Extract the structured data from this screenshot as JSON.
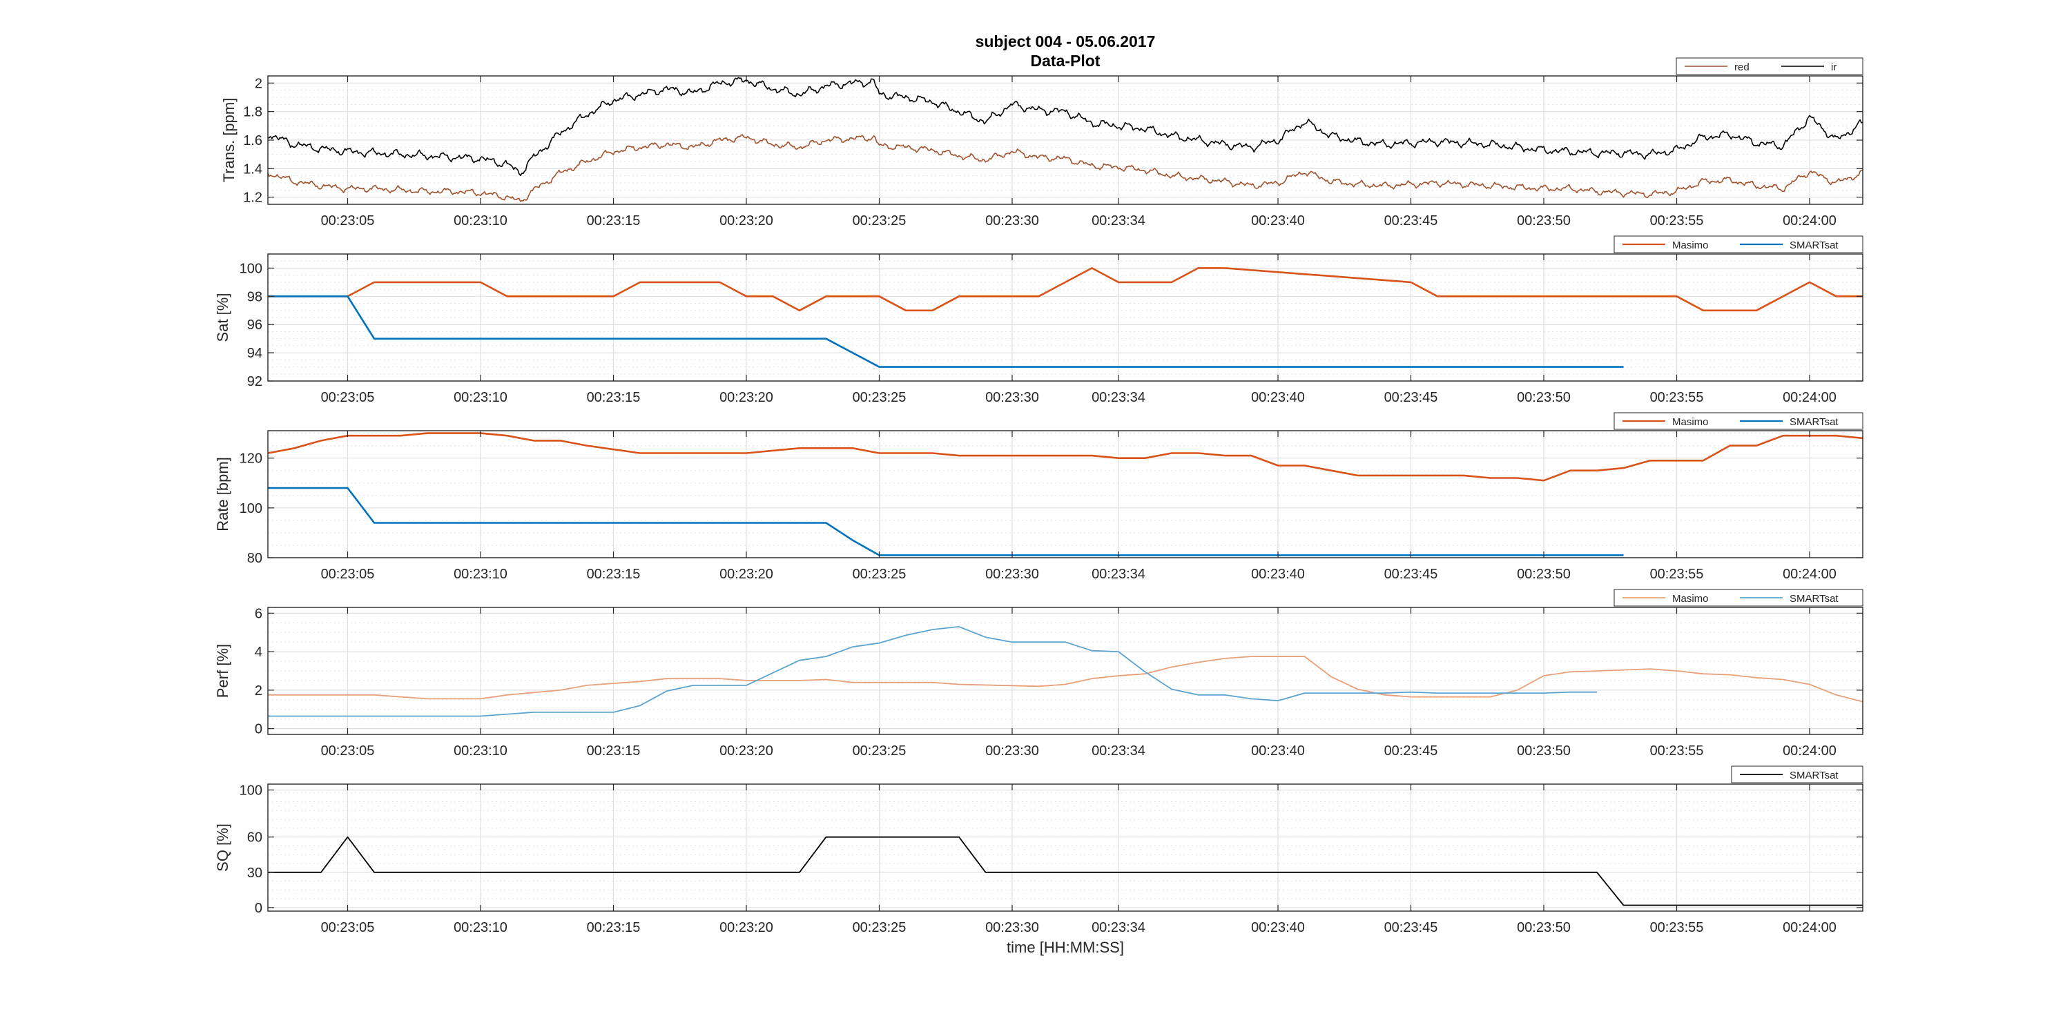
{
  "figure": {
    "title": "subject 004 - 05.06.2017",
    "subtitle": "Data-Plot",
    "xlabel": "time [HH:MM:SS]"
  },
  "colors": {
    "masimo": "#D95319",
    "smartsat": "#0072BD",
    "ir": "#000000",
    "red": "#A0522D"
  },
  "chart_data": [
    {
      "type": "line",
      "ylabel": "Trans. [ppm]",
      "ylim": [
        1.15,
        2.05
      ],
      "yticks": [
        1.2,
        1.4,
        1.6,
        1.8,
        2.0
      ],
      "yticklabels": [
        "1.2",
        "1.4",
        "1.6",
        "1.8",
        "2"
      ],
      "xlim_seconds": [
        2,
        62
      ],
      "xticklabels": [
        "00:23:05",
        "00:23:10",
        "00:23:15",
        "00:23:20",
        "00:23:25",
        "00:23:30",
        "00:23:34",
        "00:23:40",
        "00:23:45",
        "00:23:50",
        "00:23:55",
        "00:24:00"
      ],
      "legend": "top-right",
      "grid": true,
      "series": [
        {
          "name": "red",
          "color": "#A0522D",
          "width": 1.6,
          "noisy": true,
          "x": [
            2,
            3,
            4,
            5,
            6,
            7,
            8,
            9,
            10,
            11,
            11.5,
            12,
            13,
            14,
            15,
            16,
            17,
            18,
            19,
            20,
            21,
            22,
            23,
            24,
            24.8,
            25,
            26,
            27,
            28,
            29,
            30,
            31,
            32,
            33,
            34,
            35,
            36,
            37,
            38,
            39,
            40,
            41,
            42,
            43,
            44,
            45,
            46,
            47,
            48,
            49,
            50,
            51,
            52,
            53,
            54,
            55,
            56,
            57,
            58,
            59,
            60,
            61,
            62
          ],
          "y": [
            1.37,
            1.31,
            1.28,
            1.26,
            1.26,
            1.25,
            1.24,
            1.24,
            1.23,
            1.2,
            1.17,
            1.25,
            1.37,
            1.45,
            1.52,
            1.55,
            1.57,
            1.55,
            1.6,
            1.62,
            1.57,
            1.55,
            1.6,
            1.61,
            1.62,
            1.56,
            1.55,
            1.53,
            1.49,
            1.46,
            1.52,
            1.48,
            1.47,
            1.42,
            1.41,
            1.39,
            1.35,
            1.33,
            1.31,
            1.28,
            1.3,
            1.38,
            1.31,
            1.29,
            1.28,
            1.29,
            1.3,
            1.29,
            1.28,
            1.27,
            1.26,
            1.26,
            1.24,
            1.23,
            1.22,
            1.24,
            1.31,
            1.32,
            1.28,
            1.26,
            1.38,
            1.3,
            1.37
          ]
        },
        {
          "name": "ir",
          "color": "#000000",
          "width": 1.6,
          "noisy": true,
          "x": [
            2,
            3,
            4,
            5,
            6,
            7,
            8,
            9,
            10,
            11,
            11.5,
            12,
            13,
            14,
            15,
            16,
            17,
            18,
            19,
            20,
            21,
            22,
            23,
            24,
            24.8,
            25,
            26,
            27,
            28,
            29,
            30,
            31,
            32,
            33,
            34,
            35,
            36,
            37,
            38,
            39,
            40,
            41,
            42,
            43,
            44,
            45,
            46,
            47,
            48,
            49,
            50,
            51,
            52,
            53,
            54,
            55,
            56,
            57,
            58,
            59,
            60,
            61,
            62
          ],
          "y": [
            1.64,
            1.57,
            1.54,
            1.52,
            1.51,
            1.5,
            1.49,
            1.48,
            1.47,
            1.43,
            1.37,
            1.48,
            1.65,
            1.78,
            1.88,
            1.92,
            1.96,
            1.93,
            2.0,
            2.02,
            1.96,
            1.92,
            1.98,
            2.0,
            2.01,
            1.92,
            1.9,
            1.87,
            1.8,
            1.73,
            1.85,
            1.81,
            1.8,
            1.72,
            1.7,
            1.68,
            1.63,
            1.6,
            1.57,
            1.55,
            1.6,
            1.73,
            1.63,
            1.59,
            1.57,
            1.58,
            1.59,
            1.58,
            1.57,
            1.55,
            1.53,
            1.52,
            1.51,
            1.51,
            1.5,
            1.53,
            1.62,
            1.64,
            1.58,
            1.56,
            1.76,
            1.6,
            1.72
          ]
        }
      ]
    },
    {
      "type": "line",
      "ylabel": "Sat [%]",
      "ylim": [
        92,
        101
      ],
      "yticks": [
        92,
        94,
        96,
        98,
        100
      ],
      "yticklabels": [
        "92",
        "94",
        "96",
        "98",
        "100"
      ],
      "xlim_seconds": [
        2,
        62
      ],
      "xticklabels": [
        "00:23:05",
        "00:23:10",
        "00:23:15",
        "00:23:20",
        "00:23:25",
        "00:23:30",
        "00:23:34",
        "00:23:40",
        "00:23:45",
        "00:23:50",
        "00:23:55",
        "00:24:00"
      ],
      "legend": "top-right",
      "grid": true,
      "series": [
        {
          "name": "Masimo",
          "color": "#D95319",
          "width": 2.6,
          "x": [
            2,
            5,
            6,
            10,
            11,
            15,
            16,
            19,
            20,
            21,
            22,
            23,
            25,
            26,
            27,
            28,
            31,
            33,
            34,
            36,
            37,
            38,
            45,
            46,
            55,
            56,
            58,
            60,
            61,
            62
          ],
          "y": [
            98,
            98,
            99,
            99,
            98,
            98,
            99,
            99,
            98,
            98,
            97,
            98,
            98,
            97,
            97,
            98,
            98,
            100,
            99,
            99,
            100,
            100,
            99,
            98,
            98,
            97,
            97,
            99,
            98,
            98
          ]
        },
        {
          "name": "SMARTsat",
          "color": "#0072BD",
          "width": 2.6,
          "x": [
            2,
            5,
            6,
            23,
            25,
            53
          ],
          "y": [
            98,
            98,
            95,
            95,
            93,
            93
          ]
        }
      ]
    },
    {
      "type": "line",
      "ylabel": "Rate [bpm]",
      "ylim": [
        80,
        131
      ],
      "yticks": [
        80,
        100,
        120
      ],
      "yticklabels": [
        "80",
        "100",
        "120"
      ],
      "xlim_seconds": [
        2,
        62
      ],
      "xticklabels": [
        "00:23:05",
        "00:23:10",
        "00:23:15",
        "00:23:20",
        "00:23:25",
        "00:23:30",
        "00:23:34",
        "00:23:40",
        "00:23:45",
        "00:23:50",
        "00:23:55",
        "00:24:00"
      ],
      "legend": "top-right",
      "grid": true,
      "series": [
        {
          "name": "Masimo",
          "color": "#D95319",
          "width": 2.6,
          "x": [
            2,
            3,
            4,
            5,
            7,
            8,
            10,
            11,
            12,
            13,
            14,
            16,
            20,
            22,
            24,
            25,
            27,
            28,
            33,
            34,
            35,
            36,
            37,
            38,
            39,
            40,
            41,
            42,
            43,
            47,
            48,
            49,
            50,
            51,
            52,
            53,
            54,
            56,
            57,
            58,
            59,
            60,
            61,
            62
          ],
          "y": [
            122,
            124,
            127,
            129,
            129,
            130,
            130,
            129,
            127,
            127,
            125,
            122,
            122,
            124,
            124,
            122,
            122,
            121,
            121,
            120,
            120,
            122,
            122,
            121,
            121,
            117,
            117,
            115,
            113,
            113,
            112,
            112,
            111,
            115,
            115,
            116,
            119,
            119,
            125,
            125,
            129,
            129,
            129,
            128
          ]
        },
        {
          "name": "SMARTsat",
          "color": "#0072BD",
          "width": 2.6,
          "x": [
            2,
            5,
            6,
            23,
            24,
            25,
            53
          ],
          "y": [
            108,
            108,
            94,
            94,
            87,
            81,
            81
          ]
        }
      ]
    },
    {
      "type": "line",
      "ylabel": "Perf [%]",
      "ylim": [
        -0.3,
        6.3
      ],
      "yticks": [
        0,
        2,
        4,
        6
      ],
      "yticklabels": [
        "0",
        "2",
        "4",
        "6"
      ],
      "xlim_seconds": [
        2,
        62
      ],
      "xticklabels": [
        "00:23:05",
        "00:23:10",
        "00:23:15",
        "00:23:20",
        "00:23:25",
        "00:23:30",
        "00:23:34",
        "00:23:40",
        "00:23:45",
        "00:23:50",
        "00:23:55",
        "00:24:00"
      ],
      "legend": "top-right",
      "grid": true,
      "series": [
        {
          "name": "Masimo",
          "color": "#E8A07A",
          "width": 1.8,
          "x": [
            2,
            6,
            8,
            10,
            11,
            13,
            14,
            16,
            17,
            19,
            20,
            22,
            23,
            24,
            25,
            27,
            28,
            31,
            32,
            33,
            34,
            35,
            36,
            37,
            38,
            39,
            40,
            41,
            42,
            43,
            44,
            45,
            46,
            47,
            48,
            49,
            50,
            51,
            52,
            53,
            54,
            55,
            56,
            57,
            58,
            59,
            60,
            61,
            62
          ],
          "y": [
            1.75,
            1.75,
            1.55,
            1.55,
            1.75,
            2.0,
            2.25,
            2.45,
            2.6,
            2.6,
            2.5,
            2.5,
            2.55,
            2.4,
            2.4,
            2.4,
            2.3,
            2.2,
            2.3,
            2.6,
            2.75,
            2.85,
            3.2,
            3.45,
            3.65,
            3.75,
            3.75,
            3.75,
            2.7,
            2.05,
            1.75,
            1.65,
            1.65,
            1.65,
            1.65,
            2.0,
            2.75,
            2.95,
            3.0,
            3.05,
            3.1,
            3.0,
            2.85,
            2.8,
            2.65,
            2.55,
            2.3,
            1.75,
            1.4
          ]
        },
        {
          "name": "SMARTsat",
          "color": "#5BA3D0",
          "width": 1.8,
          "x": [
            2,
            10,
            12,
            15,
            16,
            17,
            18,
            19,
            20,
            21,
            22,
            23,
            24,
            25,
            26,
            27,
            28,
            29,
            30,
            31,
            32,
            33,
            34,
            35,
            36,
            37,
            38,
            39,
            40,
            41,
            42,
            43,
            44,
            45,
            46,
            47,
            48,
            49,
            50,
            51,
            52
          ],
          "y": [
            0.65,
            0.65,
            0.85,
            0.85,
            1.2,
            1.95,
            2.25,
            2.25,
            2.25,
            2.9,
            3.55,
            3.75,
            4.25,
            4.45,
            4.85,
            5.15,
            5.3,
            4.75,
            4.5,
            4.5,
            4.5,
            4.05,
            4.0,
            2.95,
            2.05,
            1.75,
            1.75,
            1.55,
            1.45,
            1.85,
            1.85,
            1.85,
            1.85,
            1.9,
            1.85,
            1.85,
            1.85,
            1.85,
            1.85,
            1.9,
            1.9
          ]
        }
      ]
    },
    {
      "type": "line",
      "ylabel": "SQ [%]",
      "ylim": [
        -3,
        105
      ],
      "yticks": [
        0,
        30,
        60,
        100
      ],
      "yticklabels": [
        "0",
        "30",
        "60",
        "100"
      ],
      "xlim_seconds": [
        2,
        62
      ],
      "xticklabels": [
        "00:23:05",
        "00:23:10",
        "00:23:15",
        "00:23:20",
        "00:23:25",
        "00:23:30",
        "00:23:34",
        "00:23:40",
        "00:23:45",
        "00:23:50",
        "00:23:55",
        "00:24:00"
      ],
      "xlabel": "time [HH:MM:SS]",
      "legend": "top-right",
      "grid": true,
      "series": [
        {
          "name": "SMARTsat",
          "color": "#000000",
          "width": 1.8,
          "x": [
            2,
            4,
            5,
            6,
            22,
            23,
            28,
            29,
            52,
            53,
            62
          ],
          "y": [
            30,
            30,
            60,
            30,
            30,
            60,
            60,
            30,
            30,
            2,
            2
          ]
        }
      ]
    }
  ]
}
